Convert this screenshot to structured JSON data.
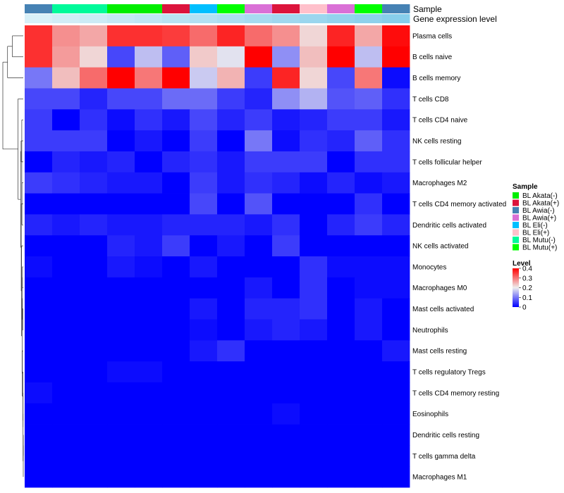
{
  "chart_data": {
    "type": "heatmap",
    "title": "",
    "annotation_labels": [
      "Sample",
      "Gene expression level"
    ],
    "rows": [
      "Plasma cells",
      "B cells naive",
      "B cells memory",
      "T cells CD8",
      "T cells CD4 naive",
      "NK cells resting",
      "T cells follicular helper",
      "Macrophages M2",
      "T cells CD4 memory activated",
      "Dendritic cells activated",
      "NK cells activated",
      "Monocytes",
      "Macrophages M0",
      "Mast cells activated",
      "Neutrophils",
      "Mast cells resting",
      "T cells regulatory  Tregs",
      "T cells CD4 memory resting",
      "Eosinophils",
      "Dendritic cells resting",
      "T cells gamma delta",
      "Macrophages M1"
    ],
    "column_samples": [
      "BL Awia(-)",
      "BL Mutu(-)",
      "BL Mutu(-)",
      "BL Akata(-)",
      "BL Akata(-)",
      "BL Akata(+)",
      "BL Eli(-)",
      "BL Mutu(+)",
      "BL Awia(+)",
      "BL Akata(+)",
      "BL Eli(+)",
      "BL Awia(+)",
      "BL Mutu(+)",
      "BL Awia(-)"
    ],
    "values": [
      [
        0.36,
        0.28,
        0.26,
        0.36,
        0.36,
        0.35,
        0.31,
        0.37,
        0.31,
        0.28,
        0.22,
        0.37,
        0.26,
        0.39
      ],
      [
        0.36,
        0.27,
        0.22,
        0.06,
        0.16,
        0.08,
        0.23,
        0.19,
        0.4,
        0.12,
        0.24,
        0.4,
        0.16,
        0.4
      ],
      [
        0.1,
        0.24,
        0.31,
        0.4,
        0.3,
        0.4,
        0.17,
        0.25,
        0.05,
        0.37,
        0.22,
        0.06,
        0.3,
        0.01
      ],
      [
        0.06,
        0.06,
        0.03,
        0.06,
        0.06,
        0.09,
        0.09,
        0.05,
        0.03,
        0.12,
        0.15,
        0.07,
        0.08,
        0.04
      ],
      [
        0.05,
        0.0,
        0.04,
        0.01,
        0.04,
        0.02,
        0.06,
        0.03,
        0.05,
        0.02,
        0.03,
        0.05,
        0.05,
        0.02
      ],
      [
        0.05,
        0.05,
        0.05,
        0.0,
        0.02,
        0.0,
        0.05,
        0.0,
        0.1,
        0.01,
        0.04,
        0.03,
        0.08,
        0.04
      ],
      [
        0.0,
        0.03,
        0.02,
        0.03,
        0.0,
        0.03,
        0.04,
        0.02,
        0.05,
        0.05,
        0.05,
        0.0,
        0.04,
        0.04
      ],
      [
        0.05,
        0.04,
        0.03,
        0.02,
        0.02,
        0.0,
        0.05,
        0.02,
        0.04,
        0.03,
        0.01,
        0.03,
        0.01,
        0.02
      ],
      [
        0.0,
        0.0,
        0.0,
        0.0,
        0.0,
        0.0,
        0.06,
        0.0,
        0.07,
        0.0,
        0.0,
        0.0,
        0.04,
        0.0
      ],
      [
        0.03,
        0.02,
        0.03,
        0.02,
        0.02,
        0.03,
        0.03,
        0.03,
        0.02,
        0.04,
        0.0,
        0.03,
        0.05,
        0.03
      ],
      [
        0.0,
        0.0,
        0.0,
        0.03,
        0.02,
        0.05,
        0.0,
        0.02,
        0.0,
        0.05,
        0.0,
        0.0,
        0.0,
        0.0
      ],
      [
        0.01,
        0.0,
        0.0,
        0.02,
        0.01,
        0.0,
        0.02,
        0.0,
        0.0,
        0.0,
        0.04,
        0.01,
        0.01,
        0.01
      ],
      [
        0.0,
        0.0,
        0.0,
        0.0,
        0.0,
        0.0,
        0.0,
        0.0,
        0.02,
        0.0,
        0.04,
        0.0,
        0.01,
        0.01
      ],
      [
        0.0,
        0.0,
        0.0,
        0.0,
        0.0,
        0.0,
        0.02,
        0.0,
        0.03,
        0.03,
        0.04,
        0.0,
        0.02,
        0.0
      ],
      [
        0.0,
        0.0,
        0.0,
        0.0,
        0.0,
        0.0,
        0.01,
        0.0,
        0.02,
        0.03,
        0.02,
        0.0,
        0.02,
        0.0
      ],
      [
        0.0,
        0.0,
        0.0,
        0.0,
        0.0,
        0.0,
        0.02,
        0.04,
        0.0,
        0.0,
        0.0,
        0.0,
        0.0,
        0.02
      ],
      [
        0.0,
        0.0,
        0.0,
        0.01,
        0.01,
        0.0,
        0.0,
        0.0,
        0.0,
        0.0,
        0.0,
        0.0,
        0.0,
        0.0
      ],
      [
        0.01,
        0.0,
        0.0,
        0.0,
        0.0,
        0.0,
        0.0,
        0.0,
        0.0,
        0.0,
        0.0,
        0.0,
        0.0,
        0.0
      ],
      [
        0.0,
        0.0,
        0.0,
        0.0,
        0.0,
        0.0,
        0.0,
        0.0,
        0.0,
        0.01,
        0.0,
        0.0,
        0.0,
        0.0
      ],
      [
        0.0,
        0.0,
        0.0,
        0.0,
        0.0,
        0.0,
        0.0,
        0.0,
        0.0,
        0.0,
        0.0,
        0.0,
        0.0,
        0.0
      ],
      [
        0.0,
        0.0,
        0.0,
        0.0,
        0.0,
        0.0,
        0.0,
        0.0,
        0.0,
        0.0,
        0.0,
        0.0,
        0.0,
        0.0
      ],
      [
        0.0,
        0.0,
        0.0,
        0.0,
        0.0,
        0.0,
        0.0,
        0.0,
        0.0,
        0.0,
        0.0,
        0.0,
        0.0,
        0.0
      ]
    ],
    "value_range": [
      0,
      0.4
    ],
    "row_dendrogram": true,
    "legends": {
      "sample": {
        "title": "Sample",
        "items": [
          {
            "label": "BL Akata(-)",
            "color": "#00ee00"
          },
          {
            "label": "BL Akata(+)",
            "color": "#dc143c"
          },
          {
            "label": "BL Awia(-)",
            "color": "#4682b4"
          },
          {
            "label": "BL Awia(+)",
            "color": "#da70d6"
          },
          {
            "label": "BL Eli(-)",
            "color": "#00bfff"
          },
          {
            "label": "BL Eli(+)",
            "color": "#ffc0cb"
          },
          {
            "label": "BL Mutu(-)",
            "color": "#00fa9a"
          },
          {
            "label": "BL Mutu(+)",
            "color": "#00ff00"
          }
        ]
      },
      "level": {
        "title": "Level",
        "ticks": [
          "0.4",
          "0.3",
          "0.2",
          "0.1",
          "0"
        ],
        "colors": [
          "#0000ff",
          "#eeeeee",
          "#ff0000"
        ]
      }
    },
    "gene_expression_colors": [
      "#d8f0f8",
      "#87ceeb"
    ]
  }
}
